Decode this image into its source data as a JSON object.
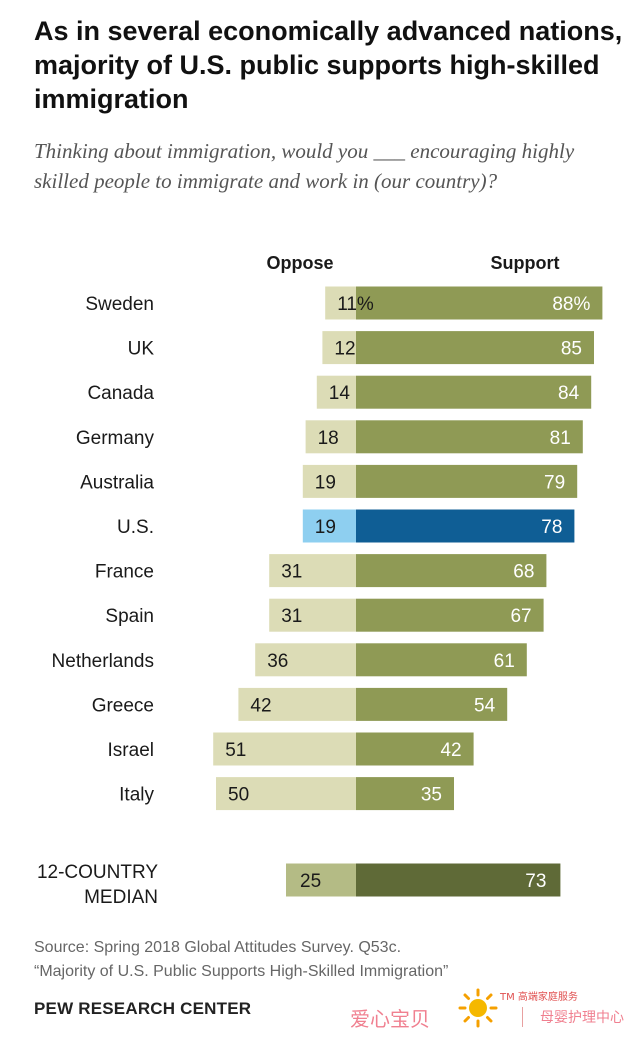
{
  "header": {
    "title": "As in several economically advanced nations, majority of U.S. public supports high-skilled immigration",
    "subtitle": "Thinking about immigration, would you ___ encouraging highly skilled people to immigrate and work in (our country)?"
  },
  "chart_data": {
    "type": "bar",
    "orientation": "diverging-horizontal",
    "column_headers": {
      "oppose": "Oppose",
      "support": "Support"
    },
    "categories": [
      "Sweden",
      "UK",
      "Canada",
      "Germany",
      "Australia",
      "U.S.",
      "France",
      "Spain",
      "Netherlands",
      "Greece",
      "Israel",
      "Italy"
    ],
    "series": [
      {
        "name": "Oppose",
        "values": [
          11,
          12,
          14,
          18,
          19,
          19,
          31,
          31,
          36,
          42,
          51,
          50
        ]
      },
      {
        "name": "Support",
        "values": [
          88,
          85,
          84,
          81,
          79,
          78,
          68,
          67,
          61,
          54,
          42,
          35
        ]
      }
    ],
    "value_labels": {
      "oppose": [
        "11%",
        "12",
        "14",
        "18",
        "19",
        "19",
        "31",
        "31",
        "36",
        "42",
        "51",
        "50"
      ],
      "support": [
        "88%",
        "85",
        "84",
        "81",
        "79",
        "78",
        "68",
        "67",
        "61",
        "54",
        "42",
        "35"
      ]
    },
    "highlight_category": "U.S.",
    "median": {
      "label_line1": "12-COUNTRY",
      "label_line2": "MEDIAN",
      "oppose": 25,
      "support": 73,
      "oppose_label": "25",
      "support_label": "73"
    },
    "colors": {
      "oppose": "#dcdcb6",
      "support": "#8f9a55",
      "oppose_highlight": "#8ecff0",
      "support_highlight": "#0f5e95",
      "oppose_median": "#b4bb85",
      "support_median": "#5f6a37"
    }
  },
  "footer": {
    "source_line1": "Source: Spring 2018 Global Attitudes Survey. Q53c.",
    "source_line2": "“Majority of U.S. Public Supports High-Skilled Immigration”",
    "org": "PEW RESEARCH CENTER"
  },
  "watermark": {
    "brand": "爱心宝贝",
    "tm_text": "TM 高端家庭服务",
    "service": "母婴护理中心"
  }
}
